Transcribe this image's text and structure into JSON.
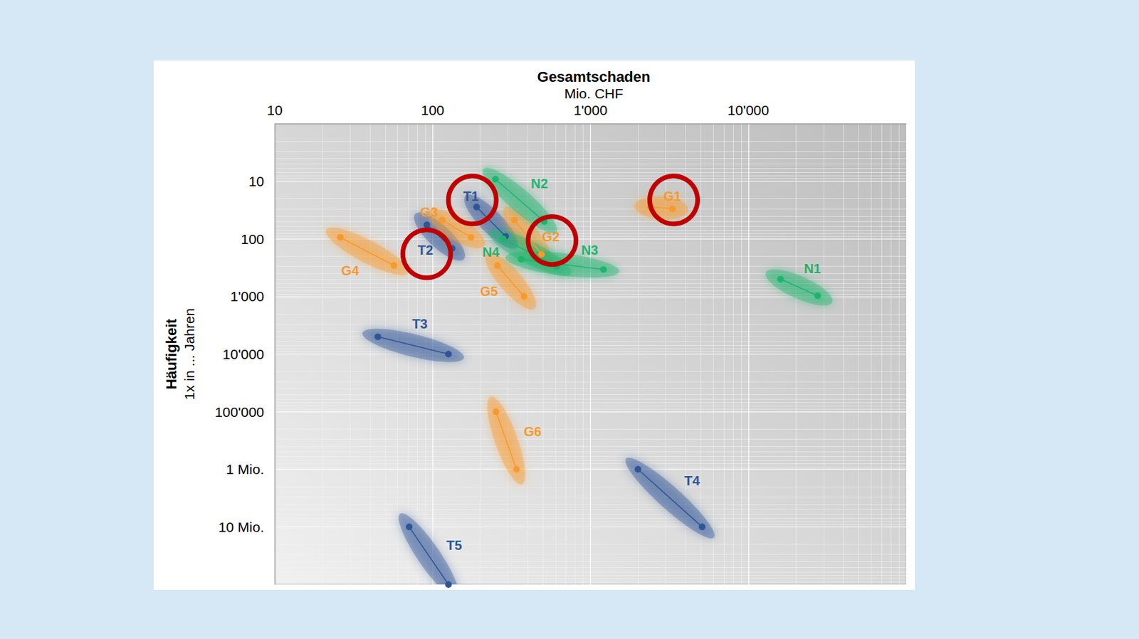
{
  "chart_data": {
    "type": "line",
    "log": true,
    "grid": true,
    "marker": "circle",
    "line_style": "solid",
    "xlabel": "Gesamtschaden",
    "xunit": "Mio. CHF",
    "ylabel": "Häufigkeit",
    "yunit": "1x in ... Jahren",
    "xlim": [
      10,
      100000
    ],
    "xticks": [
      10,
      100,
      {
        "value": 1000,
        "label": "1'000"
      },
      {
        "value": 10000,
        "label": "10'000"
      }
    ],
    "ylim": [
      100000000,
      1
    ],
    "yticks": [
      10,
      100,
      {
        "value": 1000,
        "label": "1'000"
      },
      {
        "value": 10000,
        "label": "10'000"
      },
      {
        "value": 100000,
        "label": "100'000"
      },
      {
        "value": 1000000,
        "label": "1 Mio."
      },
      {
        "value": 10000000,
        "label": "10 Mio."
      }
    ],
    "highlighted": [
      "T1",
      "T2",
      "G1",
      "G2"
    ],
    "series": [
      {
        "name": "T1",
        "color": "#2f5597",
        "x": [
          190,
          290
        ],
        "values": [
          28,
          90
        ],
        "label_at": [
          175,
          18
        ]
      },
      {
        "name": "T2",
        "color": "#2f5597",
        "x": [
          92,
          133
        ],
        "values": [
          57,
          146
        ],
        "label_at": [
          90,
          155
        ]
      },
      {
        "name": "T3",
        "color": "#2f5597",
        "x": [
          45,
          126
        ],
        "values": [
          5000,
          10000
        ],
        "label_at": [
          83,
          2950
        ]
      },
      {
        "name": "T4",
        "color": "#2f5597",
        "x": [
          2000,
          5100
        ],
        "values": [
          1000000,
          10000000
        ],
        "label_at": [
          4400,
          1600000
        ]
      },
      {
        "name": "T5",
        "color": "#2f5597",
        "x": [
          71,
          126
        ],
        "values": [
          10000000,
          100000000
        ],
        "label_at": [
          137,
          21000000
        ]
      },
      {
        "name": "G1",
        "color": "#f79a2e",
        "x": [
          2400,
          3300
        ],
        "values": [
          28,
          30
        ],
        "label_at": [
          3300,
          18
        ]
      },
      {
        "name": "G2",
        "color": "#f79a2e",
        "x": [
          330,
          490
        ],
        "values": [
          47,
          185
        ],
        "label_at": [
          560,
          91
        ]
      },
      {
        "name": "G3",
        "color": "#f79a2e",
        "x": [
          115,
          175
        ],
        "values": [
          47,
          94
        ],
        "label_at": [
          95,
          34
        ]
      },
      {
        "name": "G4",
        "color": "#f79a2e",
        "x": [
          26,
          57
        ],
        "values": [
          94,
          290
        ],
        "label_at": [
          30,
          360
        ]
      },
      {
        "name": "G5",
        "color": "#f79a2e",
        "x": [
          257,
          380
        ],
        "values": [
          290,
          1000
        ],
        "label_at": [
          228,
          810
        ]
      },
      {
        "name": "G6",
        "color": "#f79a2e",
        "x": [
          252,
          340
        ],
        "values": [
          100000,
          1000000
        ],
        "label_at": [
          430,
          220000
        ]
      },
      {
        "name": "N1",
        "color": "#1fb46e",
        "x": [
          16000,
          27500
        ],
        "values": [
          500,
          970
        ],
        "label_at": [
          25500,
          330
        ]
      },
      {
        "name": "N2",
        "color": "#1fb46e",
        "x": [
          250,
          510
        ],
        "values": [
          9.2,
          50
        ],
        "label_at": [
          475,
          11
        ]
      },
      {
        "name": "N3",
        "color": "#1fb46e",
        "x": [
          365,
          1210
        ],
        "values": [
          226,
          340
        ],
        "label_at": [
          990,
          155
        ]
      },
      {
        "name": "N4",
        "color": "#1fb46e",
        "x": [
          280,
          610
        ],
        "values": [
          100,
          300
        ],
        "label_at": [
          234,
          170
        ]
      }
    ]
  }
}
